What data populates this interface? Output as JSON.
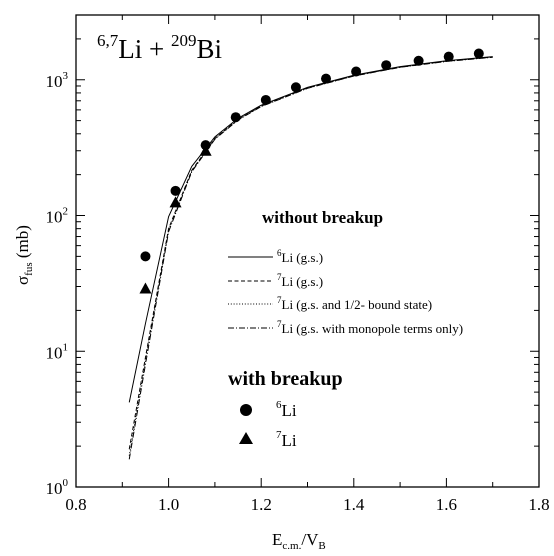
{
  "chart_data": {
    "type": "line",
    "title": "6,7Li + 209Bi",
    "title_parts": {
      "pre_sup": "6,7",
      "sym1": "Li + ",
      "mid_sup": "209",
      "sym2": "Bi"
    },
    "xlabel": {
      "main": "E",
      "sub": "c.m.",
      "sep": "/V",
      "sub2": "B"
    },
    "ylabel": {
      "main": "σ",
      "sub": "fus",
      "unit": " (mb)"
    },
    "xlim": [
      0.8,
      1.8
    ],
    "ylim": [
      1,
      3000
    ],
    "yscale": "log",
    "x_ticks": [
      0.8,
      1.0,
      1.2,
      1.4,
      1.6,
      1.8
    ],
    "x_tick_labels": [
      "0.8",
      "1.0",
      "1.2",
      "1.4",
      "1.6",
      "1.8"
    ],
    "y_ticks": [
      1,
      10,
      100,
      1000
    ],
    "y_tick_labels": [
      {
        "base": "10",
        "exp": "0"
      },
      {
        "base": "10",
        "exp": "1"
      },
      {
        "base": "10",
        "exp": "2"
      },
      {
        "base": "10",
        "exp": "3"
      }
    ],
    "grid": false,
    "legend_headings": {
      "without": "without breakup",
      "with": "with breakup"
    },
    "series": [
      {
        "name": "Li (g.s.)",
        "sup": "6",
        "style": "solid",
        "x": [
          0.915,
          0.95,
          1.0,
          1.05,
          1.1,
          1.15,
          1.2,
          1.3,
          1.4,
          1.5,
          1.6,
          1.7
        ],
        "y": [
          4.2,
          16,
          98,
          230,
          380,
          520,
          650,
          880,
          1080,
          1250,
          1380,
          1480
        ]
      },
      {
        "name": "Li (g.s.)",
        "sup": "7",
        "style": "dashed",
        "x": [
          0.915,
          0.95,
          1.0,
          1.05,
          1.1,
          1.15,
          1.2,
          1.3,
          1.4,
          1.5,
          1.6,
          1.7
        ],
        "y": [
          1.9,
          9,
          80,
          215,
          370,
          510,
          640,
          870,
          1070,
          1240,
          1370,
          1470
        ]
      },
      {
        "name": "Li (g.s. and 1/2- bound state)",
        "sup": "7",
        "style": "dotted",
        "x": [
          0.915,
          0.95,
          1.0,
          1.05,
          1.1,
          1.15,
          1.2,
          1.3,
          1.4,
          1.5,
          1.6,
          1.7
        ],
        "y": [
          1.7,
          8.5,
          78,
          212,
          368,
          508,
          638,
          868,
          1068,
          1238,
          1368,
          1468
        ]
      },
      {
        "name": "Li (g.s. with monopole terms only)",
        "sup": "7",
        "style": "dashdot",
        "x": [
          0.915,
          0.95,
          1.0,
          1.05,
          1.1,
          1.15,
          1.2,
          1.3,
          1.4,
          1.5,
          1.6,
          1.7
        ],
        "y": [
          1.6,
          8,
          76,
          210,
          365,
          505,
          635,
          865,
          1065,
          1235,
          1365,
          1465
        ]
      }
    ],
    "points": [
      {
        "name": "Li",
        "sup": "6",
        "marker": "circle",
        "x": [
          0.95,
          1.015,
          1.08,
          1.145,
          1.21,
          1.275,
          1.34,
          1.405,
          1.47,
          1.54,
          1.605,
          1.67
        ],
        "y": [
          50,
          152,
          330,
          530,
          710,
          880,
          1020,
          1150,
          1280,
          1380,
          1480,
          1560
        ]
      },
      {
        "name": "Li",
        "sup": "7",
        "marker": "triangle",
        "x": [
          0.95,
          1.015,
          1.08
        ],
        "y": [
          29,
          125,
          300
        ]
      }
    ]
  }
}
